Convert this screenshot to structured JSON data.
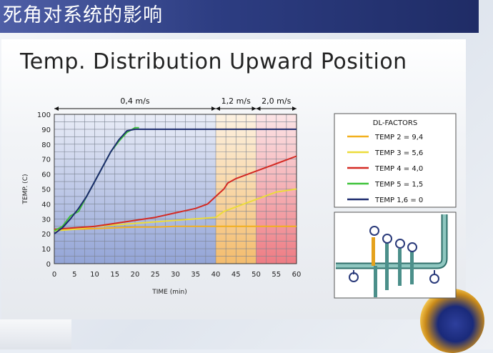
{
  "header": {
    "title": "死角对系统的影响"
  },
  "slide": {
    "title": "Temp. Distribution Upward Position"
  },
  "chart_data": {
    "type": "line",
    "xlabel": "TIME (min)",
    "ylabel": "TEMP. (C)",
    "xlim": [
      0,
      60
    ],
    "ylim": [
      0,
      100
    ],
    "x_ticks": [
      "0",
      "5",
      "10",
      "15",
      "20",
      "25",
      "30",
      "35",
      "40",
      "45",
      "50",
      "55",
      "60"
    ],
    "y_ticks": [
      "0",
      "10",
      "20",
      "30",
      "40",
      "50",
      "60",
      "70",
      "80",
      "90",
      "100"
    ],
    "grid": true,
    "zones": [
      {
        "label": "0,4 m/s",
        "x_start": 0,
        "x_end": 40,
        "color": "#6f86c9"
      },
      {
        "label": "1,2 m/s",
        "x_start": 40,
        "x_end": 50,
        "color": "#f0a63c"
      },
      {
        "label": "2,0 m/s",
        "x_start": 50,
        "x_end": 60,
        "color": "#e8505a"
      }
    ],
    "legend_title": "DL-FACTORS",
    "legend_position": "right",
    "series": [
      {
        "name": "TEMP 2 = 9,4",
        "color": "#f2b01e",
        "points": [
          [
            0,
            23
          ],
          [
            5,
            23
          ],
          [
            10,
            23.5
          ],
          [
            15,
            24
          ],
          [
            20,
            24.5
          ],
          [
            25,
            24.5
          ],
          [
            30,
            25
          ],
          [
            35,
            25
          ],
          [
            40,
            25
          ],
          [
            45,
            25
          ],
          [
            50,
            25
          ],
          [
            55,
            25
          ],
          [
            60,
            25
          ]
        ]
      },
      {
        "name": "TEMP 3 = 5,6",
        "color": "#ecdc3a",
        "points": [
          [
            0,
            22
          ],
          [
            5,
            23
          ],
          [
            10,
            25
          ],
          [
            15,
            26
          ],
          [
            20,
            27
          ],
          [
            25,
            28
          ],
          [
            30,
            29
          ],
          [
            35,
            30
          ],
          [
            40,
            31
          ],
          [
            42,
            35
          ],
          [
            45,
            38
          ],
          [
            50,
            43
          ],
          [
            55,
            48
          ],
          [
            60,
            50
          ]
        ]
      },
      {
        "name": "TEMP 4 = 4,0",
        "color": "#d42a23",
        "points": [
          [
            0,
            23
          ],
          [
            5,
            24
          ],
          [
            10,
            25
          ],
          [
            15,
            27
          ],
          [
            20,
            29
          ],
          [
            25,
            31
          ],
          [
            30,
            34
          ],
          [
            35,
            37
          ],
          [
            38,
            40
          ],
          [
            40,
            45
          ],
          [
            42,
            50
          ],
          [
            43,
            54
          ],
          [
            45,
            57
          ],
          [
            50,
            62
          ],
          [
            55,
            67
          ],
          [
            60,
            72
          ]
        ]
      },
      {
        "name": "TEMP 5 = 1,5",
        "color": "#3ec23a",
        "points": [
          [
            0,
            22
          ],
          [
            2,
            25
          ],
          [
            4,
            32
          ],
          [
            6,
            35
          ],
          [
            8,
            45
          ],
          [
            10,
            55
          ],
          [
            12,
            65
          ],
          [
            14,
            75
          ],
          [
            16,
            82
          ],
          [
            18,
            88
          ],
          [
            20,
            91
          ],
          [
            21,
            91
          ]
        ]
      },
      {
        "name": "TEMP 1,6 = 0",
        "color": "#1c2b6e",
        "points": [
          [
            0,
            20
          ],
          [
            2,
            24
          ],
          [
            4,
            30
          ],
          [
            6,
            37
          ],
          [
            8,
            45
          ],
          [
            10,
            55
          ],
          [
            12,
            65
          ],
          [
            14,
            75
          ],
          [
            16,
            83
          ],
          [
            18,
            89
          ],
          [
            20,
            90
          ],
          [
            25,
            90
          ],
          [
            30,
            90
          ],
          [
            35,
            90
          ],
          [
            40,
            90
          ],
          [
            45,
            90
          ],
          [
            50,
            90
          ],
          [
            55,
            90
          ],
          [
            60,
            90
          ]
        ]
      }
    ]
  }
}
